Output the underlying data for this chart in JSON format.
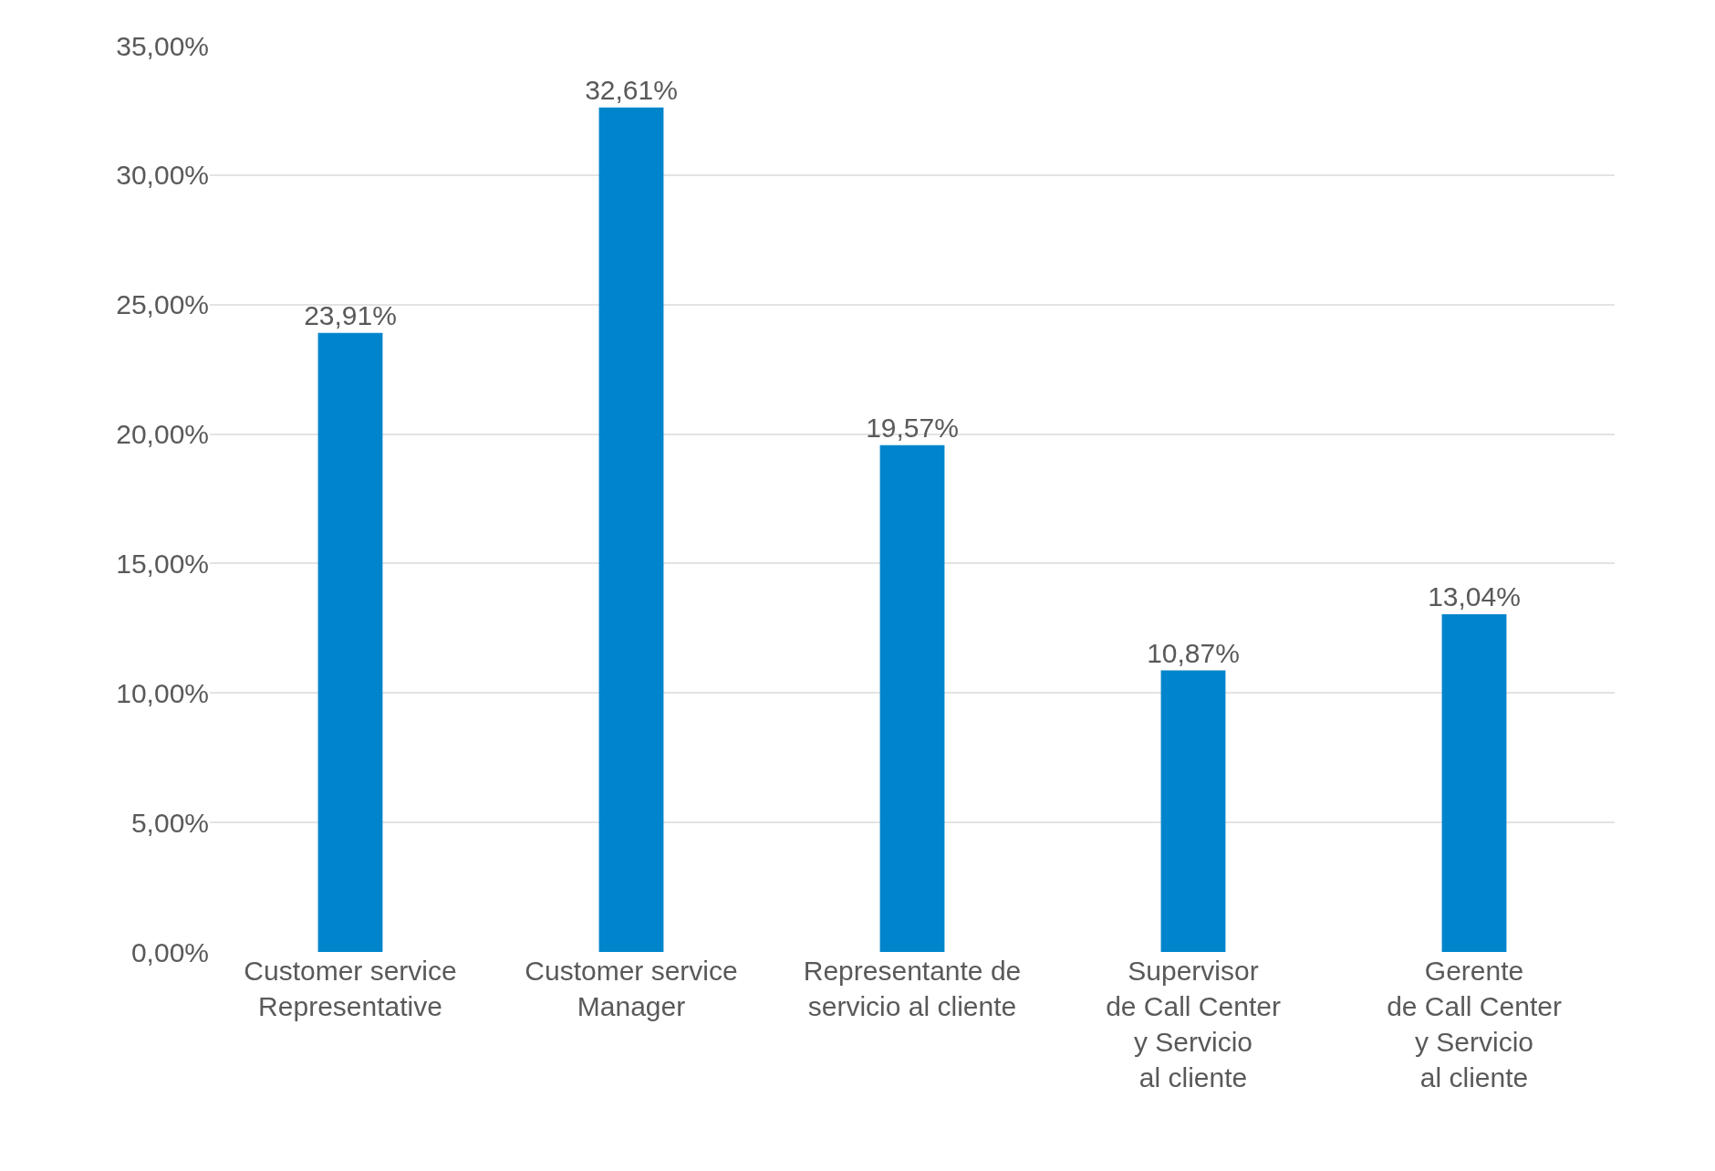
{
  "chart_data": {
    "type": "bar",
    "categories": [
      "Customer service\nRepresentative",
      "Customer service\nManager",
      "Representante de\nservicio al cliente",
      "Supervisor\nde Call Center\ny Servicio\nal cliente",
      "Gerente\nde Call Center\ny Servicio\nal cliente"
    ],
    "values": [
      23.91,
      32.61,
      19.57,
      10.87,
      13.04
    ],
    "value_labels": [
      "23,91%",
      "32,61%",
      "19,57%",
      "10,87%",
      "13,04%"
    ],
    "color": "#0085cc",
    "ylim": [
      0,
      35
    ],
    "yticks": [
      {
        "value": 0,
        "label": "0,00%"
      },
      {
        "value": 5,
        "label": "5,00%"
      },
      {
        "value": 10,
        "label": "10,00%"
      },
      {
        "value": 15,
        "label": "15,00%"
      },
      {
        "value": 20,
        "label": "20,00%"
      },
      {
        "value": 25,
        "label": "25,00%"
      },
      {
        "value": 30,
        "label": "30,00%"
      },
      {
        "value": 35,
        "label": "35,00%"
      }
    ],
    "grid": "y"
  }
}
